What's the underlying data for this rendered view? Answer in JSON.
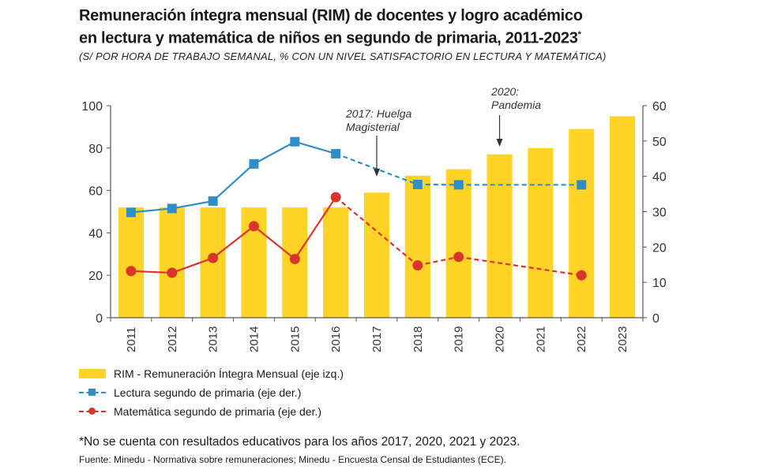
{
  "title_line1": "Remuneración íntegra mensual (RIM) de docentes y logro académico",
  "title_line2": "en lectura y matemática de niños en segundo de primaria, 2011-2023",
  "title_asterisk": "*",
  "subtitle": "(S/ POR HORA DE TRABAJO SEMANAL, % CON UN NIVEL SATISFACTORIO EN LECTURA Y MATEMÁTICA)",
  "note": "*No se cuenta con resultados educativos para los años 2017, 2020, 2021 y 2023.",
  "source": "Fuente: Minedu - Normativa sobre remuneraciones; Minedu - Encuesta Censal de Estudiantes (ECE).",
  "colors": {
    "bar": "#FFD426",
    "lectura": "#2E8FC8",
    "matematica": "#D9352B",
    "axis": "#555555"
  },
  "chart_data": {
    "type": "bar",
    "categories": [
      "2011",
      "2012",
      "2013",
      "2014",
      "2015",
      "2016",
      "2017",
      "2018",
      "2019",
      "2020",
      "2021",
      "2022",
      "2023"
    ],
    "y_left": {
      "range": [
        0,
        100
      ],
      "ticks": [
        0,
        20,
        40,
        60,
        80,
        100
      ]
    },
    "y_right": {
      "range": [
        0,
        60
      ],
      "ticks": [
        0,
        10,
        20,
        30,
        40,
        50,
        60
      ]
    },
    "series": [
      {
        "name": "RIM - Remuneración Íntegra Mensual (eje izq.)",
        "type": "bar",
        "axis": "left",
        "values": [
          52,
          52,
          52,
          52,
          52,
          52,
          59,
          67,
          70,
          77,
          80,
          89,
          95
        ]
      },
      {
        "name": "Lectura segundo de primaria (eje der.)",
        "type": "line",
        "axis": "right",
        "marker": "square",
        "values": [
          29.8,
          30.9,
          33.0,
          43.5,
          49.8,
          46.4,
          null,
          37.7,
          37.6,
          null,
          null,
          37.6,
          null
        ]
      },
      {
        "name": "Matemática segundo de primaria (eje der.)",
        "type": "line",
        "axis": "right",
        "marker": "circle",
        "values": [
          13.2,
          12.7,
          16.9,
          25.9,
          16.6,
          34.1,
          null,
          14.8,
          17.2,
          null,
          null,
          12.0,
          null
        ]
      }
    ],
    "dashed_from_category": "2016",
    "annotations": [
      {
        "text_lines": [
          "2017: Huelga",
          "Magisterial"
        ],
        "category": "2017"
      },
      {
        "text_lines": [
          "2020:",
          "Pandemia"
        ],
        "category": "2020"
      }
    ]
  }
}
